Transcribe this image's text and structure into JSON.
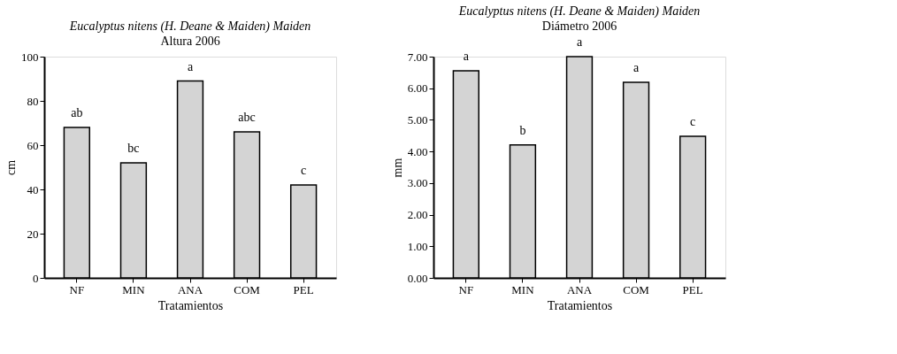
{
  "chart_data": [
    {
      "type": "bar",
      "title": "Eucalyptus nitens (H. Deane & Maiden) Maiden",
      "subtitle": "Altura 2006",
      "xlabel": "Tratamientos",
      "ylabel": "cm",
      "categories": [
        "NF",
        "MIN",
        "ANA",
        "COM",
        "PEL"
      ],
      "values": [
        68,
        52,
        89,
        66,
        42
      ],
      "color": "#d4d4d4",
      "ylim": [
        0,
        100
      ],
      "yticks": [
        0,
        20,
        40,
        60,
        80,
        100
      ],
      "grid": false,
      "annotations": [
        {
          "text": "ab",
          "x": "NF",
          "y": 68
        },
        {
          "text": "bc",
          "x": "MIN",
          "y": 52
        },
        {
          "text": "a",
          "x": "ANA",
          "y": 89
        },
        {
          "text": "abc",
          "x": "COM",
          "y": 66
        },
        {
          "text": "c",
          "x": "PEL",
          "y": 42
        }
      ]
    },
    {
      "type": "bar",
      "title": "Eucalyptus nitens (H. Deane & Maiden) Maiden",
      "subtitle": "Diámetro 2006",
      "xlabel": "Tratamientos",
      "ylabel": "mm",
      "categories": [
        "NF",
        "MIN",
        "ANA",
        "COM",
        "PEL"
      ],
      "values": [
        6.55,
        4.21,
        7.0,
        6.19,
        4.48
      ],
      "color": "#d4d4d4",
      "ylim": [
        0,
        7
      ],
      "yticks": [
        {
          "value": 0,
          "label": "0.00"
        },
        {
          "value": 1,
          "label": "1.00"
        },
        {
          "value": 2,
          "label": "2.00"
        },
        {
          "value": 3,
          "label": "3.00"
        },
        {
          "value": 4,
          "label": "4.00"
        },
        {
          "value": 5,
          "label": "5.00"
        },
        {
          "value": 6,
          "label": "6.00"
        },
        {
          "value": 7,
          "label": "7.00"
        }
      ],
      "grid": false,
      "annotations": [
        {
          "text": "a",
          "x": "NF",
          "y": 6.55
        },
        {
          "text": "b",
          "x": "MIN",
          "y": 4.21
        },
        {
          "text": "a",
          "x": "ANA",
          "y": 7.0
        },
        {
          "text": "a",
          "x": "COM",
          "y": 6.19
        },
        {
          "text": "c",
          "x": "PEL",
          "y": 4.48
        }
      ]
    }
  ]
}
